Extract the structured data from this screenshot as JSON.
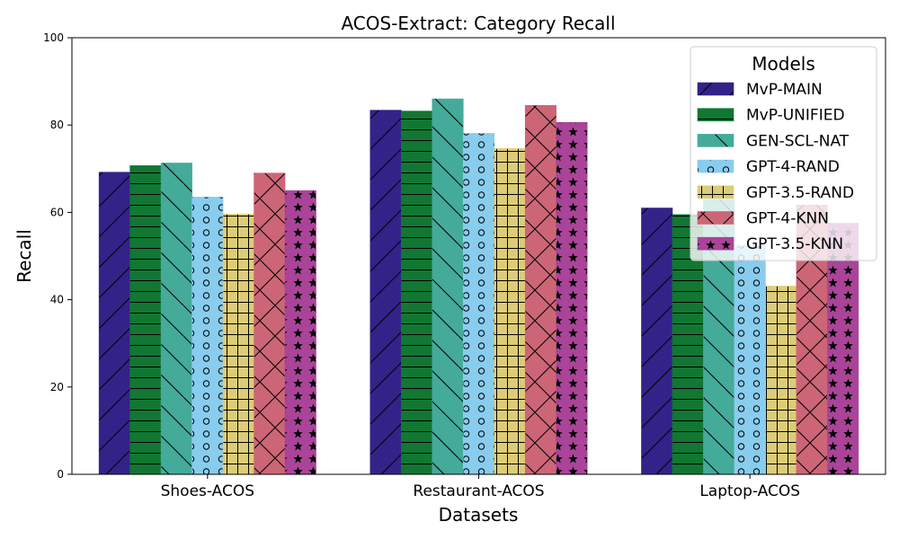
{
  "chart_data": {
    "type": "bar",
    "title": "ACOS-Extract: Category Recall",
    "xlabel": "Datasets",
    "ylabel": "Recall",
    "ylim": [
      0,
      100
    ],
    "yticks": [
      0,
      20,
      40,
      60,
      80,
      100
    ],
    "categories": [
      "Shoes-ACOS",
      "Restaurant-ACOS",
      "Laptop-ACOS"
    ],
    "grid": false,
    "legend": {
      "title": "Models",
      "placement": "top-right"
    },
    "series": [
      {
        "name": "MvP-MAIN",
        "values": [
          69.2,
          83.4,
          61.0
        ],
        "color": "#332288",
        "hatch": "forward-slash"
      },
      {
        "name": "MvP-UNIFIED",
        "values": [
          70.7,
          83.2,
          59.5
        ],
        "color": "#117733",
        "hatch": "horizontal"
      },
      {
        "name": "GEN-SCL-NAT",
        "values": [
          71.3,
          86.0,
          63.0
        ],
        "color": "#44AA99",
        "hatch": "back-slash"
      },
      {
        "name": "GPT-4-RAND",
        "values": [
          63.5,
          78.1,
          52.4
        ],
        "color": "#88CCEE",
        "hatch": "circles"
      },
      {
        "name": "GPT-3.5-RAND",
        "values": [
          59.6,
          74.6,
          43.1
        ],
        "color": "#DDCC77",
        "hatch": "grid"
      },
      {
        "name": "GPT-4-KNN",
        "values": [
          69.0,
          84.5,
          61.7
        ],
        "color": "#CC6677",
        "hatch": "cross"
      },
      {
        "name": "GPT-3.5-KNN",
        "values": [
          65.0,
          80.6,
          57.5
        ],
        "color": "#AA4499",
        "hatch": "stars"
      }
    ]
  }
}
